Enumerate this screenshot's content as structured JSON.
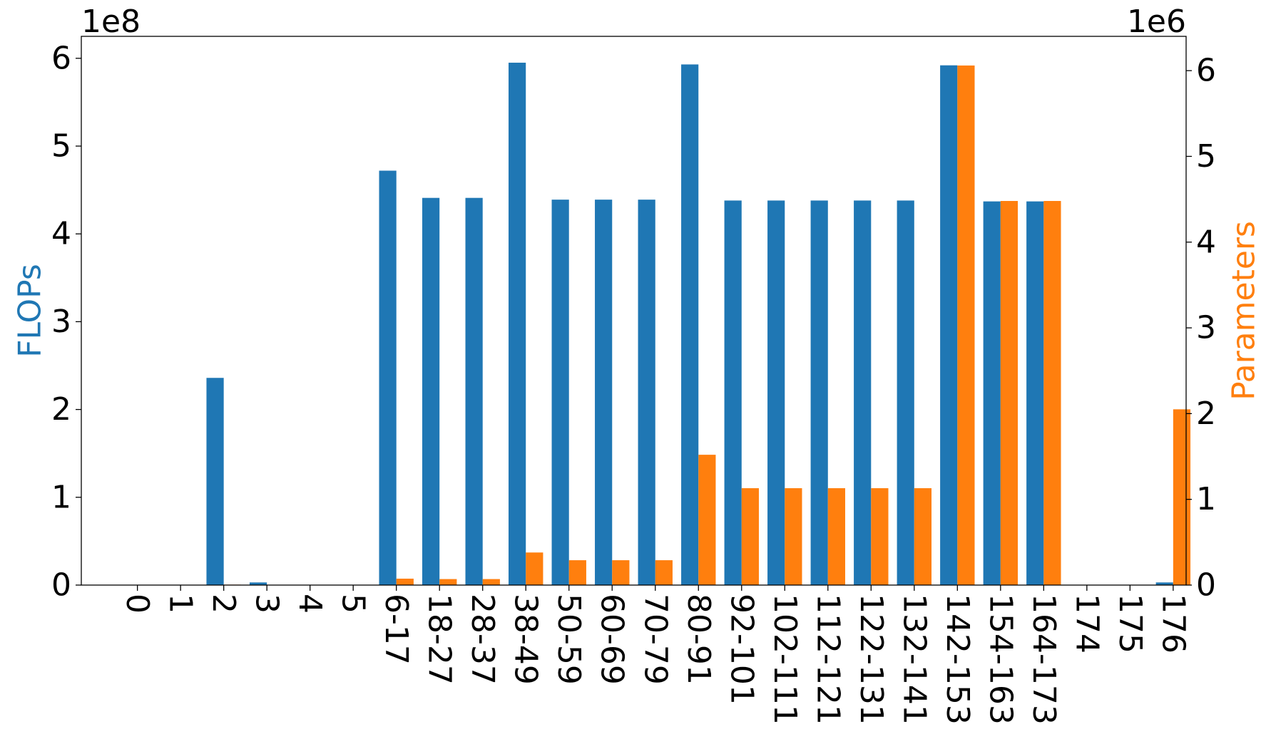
{
  "chart_data": {
    "type": "bar",
    "categories": [
      "0",
      "1",
      "2",
      "3",
      "4",
      "5",
      "6-17",
      "18-27",
      "28-37",
      "38-49",
      "50-59",
      "60-69",
      "70-79",
      "80-91",
      "92-101",
      "102-111",
      "112-121",
      "122-131",
      "132-141",
      "142-153",
      "154-163",
      "164-173",
      "174",
      "175",
      "176"
    ],
    "series": [
      {
        "name": "FLOPs",
        "axis": "left",
        "color": "#1f77b4",
        "values": [
          0,
          0,
          236000000,
          3000000,
          0,
          0,
          472000000,
          441000000,
          441000000,
          595000000,
          439000000,
          439000000,
          439000000,
          593000000,
          438000000,
          438000000,
          438000000,
          438000000,
          438000000,
          592000000,
          437000000,
          437000000,
          0,
          0,
          3000000
        ]
      },
      {
        "name": "Parameters",
        "axis": "right",
        "color": "#ff7f0e",
        "values": [
          0,
          0,
          5000,
          0,
          0,
          0,
          75000,
          70000,
          70000,
          380000,
          290000,
          290000,
          290000,
          1520000,
          1130000,
          1130000,
          1130000,
          1130000,
          1130000,
          6060000,
          4480000,
          4480000,
          0,
          0,
          2050000
        ]
      }
    ],
    "ylabel": "FLOPs",
    "ylabel_right": "Parameters",
    "ylim": [
      0,
      625000000
    ],
    "ylim_right": [
      0,
      6400000
    ],
    "yticks": [
      0,
      1,
      2,
      3,
      4,
      5,
      6
    ],
    "yticks_right": [
      0,
      1,
      2,
      3,
      4,
      5,
      6
    ],
    "yscale_label": "1e8",
    "yscale_label_right": "1e6",
    "y_multiplier": 100000000,
    "y_multiplier_right": 1000000,
    "xtick_rotation": 90,
    "grid": false,
    "legend": "none"
  }
}
